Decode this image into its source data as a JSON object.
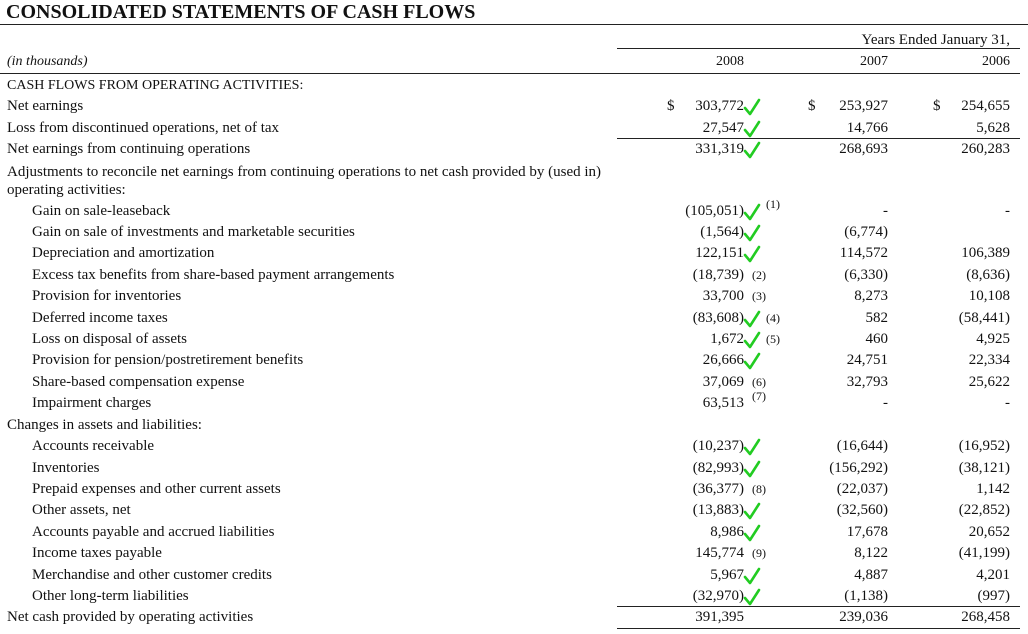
{
  "header": {
    "title": "CONSOLIDATED STATEMENTS OF CASH FLOWS",
    "period": "Years Ended January 31,",
    "units": "(in thousands)",
    "years": [
      "2008",
      "2007",
      "2006"
    ]
  },
  "table": {
    "rows": [
      {
        "label": "CASH FLOWS FROM OPERATING ACTIVITIES:",
        "heading": true
      },
      {
        "label": "Net earnings",
        "values": [
          "303,772",
          "253,927",
          "254,655"
        ],
        "currency": [
          "$",
          "$",
          "$"
        ],
        "check": true
      },
      {
        "label": "Loss from discontinued operations, net of tax",
        "values": [
          "27,547",
          "14,766",
          "5,628"
        ],
        "check": true,
        "rule_below": true
      },
      {
        "label": "Net earnings from continuing operations",
        "values": [
          "331,319",
          "268,693",
          "260,283"
        ],
        "check": true
      },
      {
        "label": "Adjustments to reconcile net earnings from continuing operations to net cash provided by (used in) operating  activities:"
      },
      {
        "label": "Gain on sale-leaseback",
        "values": [
          "(105,051)",
          "-",
          "-"
        ],
        "check": true,
        "note": "(1)",
        "note_superscript": true,
        "indent": 1
      },
      {
        "label": "Gain on sale of investments and marketable securities",
        "values": [
          "(1,564)",
          "(6,774)",
          null
        ],
        "check": true,
        "indent": 1
      },
      {
        "label": "Depreciation and amortization",
        "values": [
          "122,151",
          "114,572",
          "106,389"
        ],
        "check": true,
        "indent": 1
      },
      {
        "label": "Excess tax benefits from share-based payment arrangements",
        "values": [
          "(18,739)",
          "(6,330)",
          "(8,636)"
        ],
        "note": "(2)",
        "indent": 1
      },
      {
        "label": "Provision for inventories",
        "values": [
          "33,700",
          "8,273",
          "10,108"
        ],
        "note": "(3)",
        "indent": 1
      },
      {
        "label": "Deferred income taxes",
        "values": [
          "(83,608)",
          "582",
          "(58,441)"
        ],
        "check": true,
        "note": "(4)",
        "indent": 1
      },
      {
        "label": "Loss on disposal of assets",
        "values": [
          "1,672",
          "460",
          "4,925"
        ],
        "check": true,
        "note": "(5)",
        "indent": 1
      },
      {
        "label": "Provision for pension/postretirement benefits",
        "values": [
          "26,666",
          "24,751",
          "22,334"
        ],
        "check": true,
        "indent": 1
      },
      {
        "label": "Share-based compensation expense",
        "values": [
          "37,069",
          "32,793",
          "25,622"
        ],
        "note": "(6)",
        "indent": 1
      },
      {
        "label": "Impairment charges",
        "values": [
          "63,513",
          "-",
          "-"
        ],
        "note": "(7)",
        "note_superscript": true,
        "indent": 1
      },
      {
        "label": "Changes in assets and liabilities:"
      },
      {
        "label": "Accounts receivable",
        "values": [
          "(10,237)",
          "(16,644)",
          "(16,952)"
        ],
        "check": true,
        "indent": 1
      },
      {
        "label": "Inventories",
        "values": [
          "(82,993)",
          "(156,292)",
          "(38,121)"
        ],
        "check": true,
        "indent": 1
      },
      {
        "label": "Prepaid expenses and other current assets",
        "values": [
          "(36,377)",
          "(22,037)",
          "1,142"
        ],
        "note": "(8)",
        "indent": 1
      },
      {
        "label": "Other assets, net",
        "values": [
          "(13,883)",
          "(32,560)",
          "(22,852)"
        ],
        "check": true,
        "indent": 1
      },
      {
        "label": "Accounts payable and accrued liabilities",
        "values": [
          "8,986",
          "17,678",
          "20,652"
        ],
        "check": true,
        "indent": 1
      },
      {
        "label": "Income taxes payable",
        "values": [
          "145,774",
          "8,122",
          "(41,199)"
        ],
        "note": "(9)",
        "indent": 1
      },
      {
        "label": "Merchandise and other customer credits",
        "values": [
          "5,967",
          "4,887",
          "4,201"
        ],
        "check": true,
        "indent": 1
      },
      {
        "label": "Other long-term liabilities",
        "values": [
          "(32,970)",
          "(1,138)",
          "(997)"
        ],
        "check": true,
        "indent": 1,
        "rule_below": true
      },
      {
        "label": "Net cash provided by operating activities",
        "values": [
          "391,395",
          "239,036",
          "268,458"
        ],
        "rule_below": true
      }
    ]
  }
}
